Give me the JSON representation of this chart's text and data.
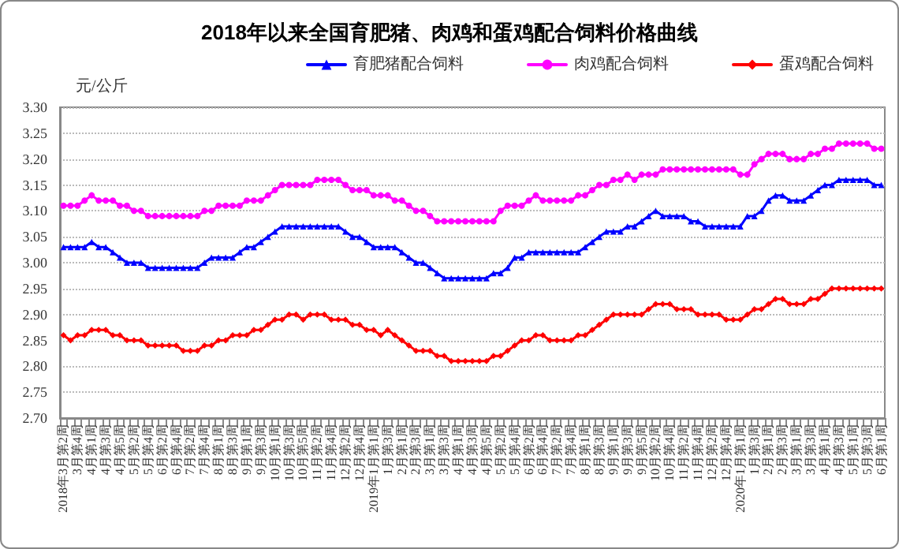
{
  "chart_data": {
    "type": "line",
    "title": "2018年以来全国育肥猪、肉鸡和蛋鸡配合饲料价格曲线",
    "ylabel": "元/公斤",
    "categories": [
      "2018年3月第2周",
      null,
      "3月第4周",
      null,
      "4月第1周",
      null,
      "4月第3周",
      null,
      "4月第5周",
      null,
      "5月第2周",
      null,
      "5月第4周",
      null,
      "6月第2周",
      null,
      "6月第4周",
      null,
      "7月第2周",
      null,
      "7月第4周",
      null,
      "8月第1周",
      null,
      "8月第3周",
      null,
      "9月第1周",
      null,
      "9月第3周",
      null,
      "10月第1周",
      null,
      "10月第3周",
      null,
      "10月第5周",
      null,
      "11月第2周",
      null,
      "11月第4周",
      null,
      "12月第2周",
      null,
      "12月第4周",
      null,
      "2019年1月第1周",
      null,
      "1月第3周",
      null,
      "2月第1周",
      null,
      "2月第3周",
      null,
      "3月第1周",
      null,
      "3月第3周",
      null,
      "4月第1周",
      null,
      "4月第3周",
      null,
      "4月第5周",
      null,
      "5月第2周",
      null,
      "5月第4周",
      null,
      "6月第2周",
      null,
      "6月第4周",
      null,
      "7月第2周",
      null,
      "7月第4周",
      null,
      "8月第1周",
      null,
      "8月第3周",
      null,
      "9月第1周",
      null,
      "9月第3周",
      null,
      "9月第5周",
      null,
      "10月第2周",
      null,
      "10月第4周",
      null,
      "11月第2周",
      null,
      "11月第4周",
      null,
      "12月第2周",
      null,
      "12月第4周",
      null,
      "2020年1月第1周",
      null,
      "1月第3周",
      null,
      "2月第1周",
      null,
      "2月第3周",
      null,
      "3月第1周",
      null,
      "3月第3周",
      null,
      "4月第1周",
      null,
      "4月第3周",
      null,
      "5月第1周",
      null,
      "5月第3周",
      null,
      "6月第1周"
    ],
    "series": [
      {
        "name": "育肥猪配合饲料",
        "color": "#0000ff",
        "marker": "triangle",
        "values": [
          3.03,
          3.03,
          3.03,
          3.03,
          3.04,
          3.03,
          3.03,
          3.02,
          3.01,
          3.0,
          3.0,
          3.0,
          2.99,
          2.99,
          2.99,
          2.99,
          2.99,
          2.99,
          2.99,
          2.99,
          3.0,
          3.01,
          3.01,
          3.01,
          3.01,
          3.02,
          3.03,
          3.03,
          3.04,
          3.05,
          3.06,
          3.07,
          3.07,
          3.07,
          3.07,
          3.07,
          3.07,
          3.07,
          3.07,
          3.07,
          3.06,
          3.05,
          3.05,
          3.04,
          3.03,
          3.03,
          3.03,
          3.03,
          3.02,
          3.01,
          3.0,
          3.0,
          2.99,
          2.98,
          2.97,
          2.97,
          2.97,
          2.97,
          2.97,
          2.97,
          2.97,
          2.98,
          2.98,
          2.99,
          3.01,
          3.01,
          3.02,
          3.02,
          3.02,
          3.02,
          3.02,
          3.02,
          3.02,
          3.02,
          3.03,
          3.04,
          3.05,
          3.06,
          3.06,
          3.06,
          3.07,
          3.07,
          3.08,
          3.09,
          3.1,
          3.09,
          3.09,
          3.09,
          3.09,
          3.08,
          3.08,
          3.07,
          3.07,
          3.07,
          3.07,
          3.07,
          3.07,
          3.09,
          3.09,
          3.1,
          3.12,
          3.13,
          3.13,
          3.12,
          3.12,
          3.12,
          3.13,
          3.14,
          3.15,
          3.15,
          3.16,
          3.16,
          3.16,
          3.16,
          3.16,
          3.15,
          3.15
        ]
      },
      {
        "name": "肉鸡配合饲料",
        "color": "#ff00ff",
        "marker": "circle",
        "values": [
          3.11,
          3.11,
          3.11,
          3.12,
          3.13,
          3.12,
          3.12,
          3.12,
          3.11,
          3.11,
          3.1,
          3.1,
          3.09,
          3.09,
          3.09,
          3.09,
          3.09,
          3.09,
          3.09,
          3.09,
          3.1,
          3.1,
          3.11,
          3.11,
          3.11,
          3.11,
          3.12,
          3.12,
          3.12,
          3.13,
          3.14,
          3.15,
          3.15,
          3.15,
          3.15,
          3.15,
          3.16,
          3.16,
          3.16,
          3.16,
          3.15,
          3.14,
          3.14,
          3.14,
          3.13,
          3.13,
          3.13,
          3.12,
          3.12,
          3.11,
          3.1,
          3.1,
          3.09,
          3.08,
          3.08,
          3.08,
          3.08,
          3.08,
          3.08,
          3.08,
          3.08,
          3.08,
          3.1,
          3.11,
          3.11,
          3.11,
          3.12,
          3.13,
          3.12,
          3.12,
          3.12,
          3.12,
          3.12,
          3.13,
          3.13,
          3.14,
          3.15,
          3.15,
          3.16,
          3.16,
          3.17,
          3.16,
          3.17,
          3.17,
          3.17,
          3.18,
          3.18,
          3.18,
          3.18,
          3.18,
          3.18,
          3.18,
          3.18,
          3.18,
          3.18,
          3.18,
          3.17,
          3.17,
          3.19,
          3.2,
          3.21,
          3.21,
          3.21,
          3.2,
          3.2,
          3.2,
          3.21,
          3.21,
          3.22,
          3.22,
          3.23,
          3.23,
          3.23,
          3.23,
          3.23,
          3.22,
          3.22
        ]
      },
      {
        "name": "蛋鸡配合饲料",
        "color": "#ff0000",
        "marker": "diamond",
        "values": [
          2.86,
          2.85,
          2.86,
          2.86,
          2.87,
          2.87,
          2.87,
          2.86,
          2.86,
          2.85,
          2.85,
          2.85,
          2.84,
          2.84,
          2.84,
          2.84,
          2.84,
          2.83,
          2.83,
          2.83,
          2.84,
          2.84,
          2.85,
          2.85,
          2.86,
          2.86,
          2.86,
          2.87,
          2.87,
          2.88,
          2.89,
          2.89,
          2.9,
          2.9,
          2.89,
          2.9,
          2.9,
          2.9,
          2.89,
          2.89,
          2.89,
          2.88,
          2.88,
          2.87,
          2.87,
          2.86,
          2.87,
          2.86,
          2.85,
          2.84,
          2.83,
          2.83,
          2.83,
          2.82,
          2.82,
          2.81,
          2.81,
          2.81,
          2.81,
          2.81,
          2.81,
          2.82,
          2.82,
          2.83,
          2.84,
          2.85,
          2.85,
          2.86,
          2.86,
          2.85,
          2.85,
          2.85,
          2.85,
          2.86,
          2.86,
          2.87,
          2.88,
          2.89,
          2.9,
          2.9,
          2.9,
          2.9,
          2.9,
          2.91,
          2.92,
          2.92,
          2.92,
          2.91,
          2.91,
          2.91,
          2.9,
          2.9,
          2.9,
          2.9,
          2.89,
          2.89,
          2.89,
          2.9,
          2.91,
          2.91,
          2.92,
          2.93,
          2.93,
          2.92,
          2.92,
          2.92,
          2.93,
          2.93,
          2.94,
          2.95,
          2.95,
          2.95,
          2.95,
          2.95,
          2.95,
          2.95,
          2.95
        ]
      }
    ],
    "ylim": [
      2.7,
      3.3
    ],
    "yticks": [
      {
        "value": 2.7,
        "label": "2.70"
      },
      {
        "value": 2.75,
        "label": "2.75"
      },
      {
        "value": 2.8,
        "label": "2.80"
      },
      {
        "value": 2.85,
        "label": "2.85"
      },
      {
        "value": 2.9,
        "label": "2.90"
      },
      {
        "value": 2.95,
        "label": "2.95"
      },
      {
        "value": 3.0,
        "label": "3.00"
      },
      {
        "value": 3.05,
        "label": "3.05"
      },
      {
        "value": 3.1,
        "label": "3.10"
      },
      {
        "value": 3.15,
        "label": "3.15"
      },
      {
        "value": 3.2,
        "label": "3.20"
      },
      {
        "value": 3.25,
        "label": "3.25"
      },
      {
        "value": 3.3,
        "label": "3.30"
      }
    ],
    "grid": "y",
    "legend": "top right",
    "line_style": "solid"
  }
}
